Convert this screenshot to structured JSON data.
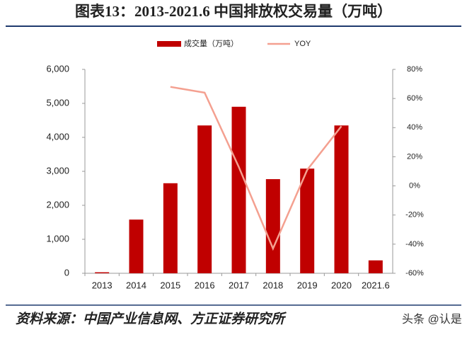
{
  "title": "图表13：2013-2021.6 中国排放权交易量（万吨）",
  "source": "资料来源：中国产业信息网、方正证券研究所",
  "watermark": "头条 @认是",
  "chart_data": {
    "type": "bar-line",
    "categories": [
      "2013",
      "2014",
      "2015",
      "2016",
      "2017",
      "2018",
      "2019",
      "2020",
      "2021.6"
    ],
    "series": [
      {
        "name": "成交量（万吨）",
        "type": "bar",
        "color": "#c00000",
        "values": [
          30,
          1580,
          2650,
          4350,
          4900,
          2770,
          3080,
          4350,
          380
        ]
      },
      {
        "name": "YOY",
        "type": "line",
        "axis": "y2",
        "color": "#f4a090",
        "values": [
          null,
          null,
          68,
          64,
          13,
          -43,
          11,
          41,
          null
        ]
      }
    ],
    "ylim": [
      0,
      6000
    ],
    "yticks": [
      0,
      {
        "value": 1000,
        "label": "1,000"
      },
      {
        "value": 2000,
        "label": "2,000"
      },
      {
        "value": 3000,
        "label": "3,000"
      },
      {
        "value": 4000,
        "label": "4,000"
      },
      {
        "value": 5000,
        "label": "5,000"
      },
      {
        "value": 6000,
        "label": "6,000"
      }
    ],
    "y2lim": [
      -60,
      80
    ],
    "y2ticks": [
      {
        "value": -60,
        "label": "-60%"
      },
      {
        "value": -40,
        "label": "-40%"
      },
      {
        "value": -20,
        "label": "-20%"
      },
      {
        "value": 0,
        "label": "0%"
      },
      {
        "value": 20,
        "label": "20%"
      },
      {
        "value": 40,
        "label": "40%"
      },
      {
        "value": 60,
        "label": "60%"
      },
      {
        "value": 80,
        "label": "80%"
      }
    ],
    "legend": "top"
  }
}
